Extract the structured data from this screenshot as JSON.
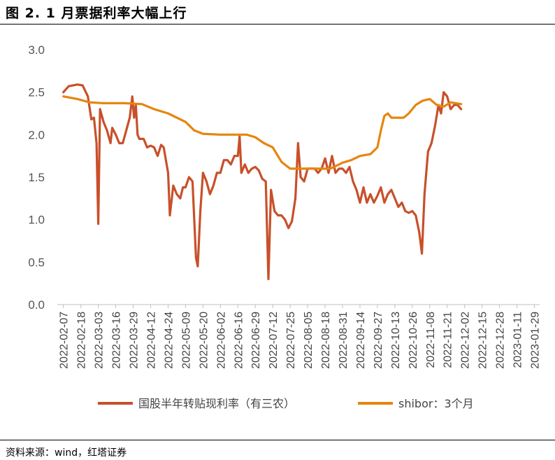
{
  "header": {
    "title": "图 2. 1 月票据利率大幅上行"
  },
  "footer": {
    "source": "资料来源：wind，红塔证券"
  },
  "chart_data": {
    "type": "line",
    "ylim": [
      0,
      3
    ],
    "yticks": [
      "0.0",
      "0.5",
      "1.0",
      "1.5",
      "2.0",
      "2.5",
      "3.0"
    ],
    "x_tick_labels": [
      "2022-02-07",
      "2022-02-18",
      "2022-03-03",
      "2022-03-16",
      "2022-03-29",
      "2022-04-12",
      "2022-04-24",
      "2022-05-09",
      "2022-05-20",
      "2022-06-02",
      "2022-06-16",
      "2022-06-29",
      "2022-07-12",
      "2022-07-25",
      "2022-08-05",
      "2022-08-18",
      "2022-08-31",
      "2022-09-14",
      "2022-09-27",
      "2022-10-13",
      "2022-10-26",
      "2022-11-08",
      "2022-11-21",
      "2022-12-02",
      "2022-12-15",
      "2022-12-28",
      "2023-01-11",
      "2023-01-29"
    ],
    "series": [
      {
        "name": "国股半年转贴现利率（有三农）",
        "color": "#C8502A",
        "points": [
          [
            0,
            2.5
          ],
          [
            0.3,
            2.57
          ],
          [
            0.8,
            2.59
          ],
          [
            1.1,
            2.58
          ],
          [
            1.4,
            2.45
          ],
          [
            1.6,
            2.18
          ],
          [
            1.75,
            2.2
          ],
          [
            1.9,
            1.9
          ],
          [
            2.0,
            0.95
          ],
          [
            2.1,
            2.3
          ],
          [
            2.3,
            2.15
          ],
          [
            2.5,
            2.05
          ],
          [
            2.7,
            1.9
          ],
          [
            2.8,
            2.08
          ],
          [
            3.0,
            2.0
          ],
          [
            3.2,
            1.9
          ],
          [
            3.4,
            1.9
          ],
          [
            3.6,
            2.05
          ],
          [
            3.8,
            2.2
          ],
          [
            3.95,
            2.45
          ],
          [
            4.05,
            2.2
          ],
          [
            4.15,
            2.35
          ],
          [
            4.25,
            2.0
          ],
          [
            4.35,
            1.95
          ],
          [
            4.6,
            1.95
          ],
          [
            4.8,
            1.85
          ],
          [
            5.0,
            1.87
          ],
          [
            5.2,
            1.85
          ],
          [
            5.4,
            1.75
          ],
          [
            5.6,
            1.88
          ],
          [
            5.75,
            1.85
          ],
          [
            6.0,
            1.55
          ],
          [
            6.1,
            1.05
          ],
          [
            6.3,
            1.4
          ],
          [
            6.5,
            1.3
          ],
          [
            6.7,
            1.25
          ],
          [
            6.85,
            1.38
          ],
          [
            7.0,
            1.38
          ],
          [
            7.2,
            1.5
          ],
          [
            7.4,
            1.45
          ],
          [
            7.6,
            0.55
          ],
          [
            7.7,
            0.45
          ],
          [
            7.85,
            1.1
          ],
          [
            8.0,
            1.55
          ],
          [
            8.2,
            1.45
          ],
          [
            8.4,
            1.3
          ],
          [
            8.6,
            1.4
          ],
          [
            8.8,
            1.55
          ],
          [
            9.0,
            1.55
          ],
          [
            9.2,
            1.7
          ],
          [
            9.4,
            1.7
          ],
          [
            9.6,
            1.65
          ],
          [
            9.8,
            1.75
          ],
          [
            10.0,
            1.75
          ],
          [
            10.1,
            1.98
          ],
          [
            10.2,
            1.55
          ],
          [
            10.4,
            1.65
          ],
          [
            10.6,
            1.55
          ],
          [
            10.8,
            1.6
          ],
          [
            11.0,
            1.62
          ],
          [
            11.2,
            1.58
          ],
          [
            11.4,
            1.48
          ],
          [
            11.6,
            1.45
          ],
          [
            11.75,
            0.3
          ],
          [
            11.9,
            1.35
          ],
          [
            12.1,
            1.1
          ],
          [
            12.3,
            1.05
          ],
          [
            12.5,
            1.05
          ],
          [
            12.7,
            1.0
          ],
          [
            12.9,
            0.9
          ],
          [
            13.1,
            0.98
          ],
          [
            13.3,
            1.25
          ],
          [
            13.45,
            1.9
          ],
          [
            13.6,
            1.5
          ],
          [
            13.8,
            1.45
          ],
          [
            14.0,
            1.6
          ],
          [
            14.2,
            1.6
          ],
          [
            14.4,
            1.6
          ],
          [
            14.6,
            1.55
          ],
          [
            14.8,
            1.6
          ],
          [
            15.0,
            1.72
          ],
          [
            15.2,
            1.55
          ],
          [
            15.4,
            1.75
          ],
          [
            15.6,
            1.55
          ],
          [
            15.8,
            1.6
          ],
          [
            16.0,
            1.6
          ],
          [
            16.2,
            1.55
          ],
          [
            16.4,
            1.62
          ],
          [
            16.6,
            1.45
          ],
          [
            16.8,
            1.35
          ],
          [
            17.0,
            1.2
          ],
          [
            17.2,
            1.38
          ],
          [
            17.4,
            1.2
          ],
          [
            17.6,
            1.3
          ],
          [
            17.8,
            1.2
          ],
          [
            18.0,
            1.28
          ],
          [
            18.2,
            1.38
          ],
          [
            18.4,
            1.2
          ],
          [
            18.6,
            1.3
          ],
          [
            18.8,
            1.35
          ],
          [
            19.0,
            1.25
          ],
          [
            19.2,
            1.15
          ],
          [
            19.4,
            1.2
          ],
          [
            19.6,
            1.1
          ],
          [
            19.8,
            1.08
          ],
          [
            20.0,
            1.1
          ],
          [
            20.2,
            1.05
          ],
          [
            20.4,
            0.85
          ],
          [
            20.55,
            0.6
          ],
          [
            20.7,
            1.3
          ],
          [
            20.9,
            1.8
          ],
          [
            21.1,
            1.9
          ],
          [
            21.3,
            2.1
          ],
          [
            21.5,
            2.35
          ],
          [
            21.65,
            2.25
          ],
          [
            21.8,
            2.5
          ],
          [
            22.0,
            2.45
          ],
          [
            22.2,
            2.3
          ],
          [
            22.4,
            2.35
          ],
          [
            22.6,
            2.35
          ],
          [
            22.8,
            2.3
          ]
        ]
      },
      {
        "name": "shibor：3个月",
        "color": "#E5860F",
        "points": [
          [
            0,
            2.45
          ],
          [
            0.8,
            2.42
          ],
          [
            1.5,
            2.38
          ],
          [
            2.3,
            2.37
          ],
          [
            3.5,
            2.37
          ],
          [
            4.5,
            2.36
          ],
          [
            5.2,
            2.3
          ],
          [
            6.0,
            2.25
          ],
          [
            7.0,
            2.15
          ],
          [
            7.5,
            2.05
          ],
          [
            8.0,
            2.01
          ],
          [
            9.0,
            2.0
          ],
          [
            10.5,
            2.0
          ],
          [
            11.0,
            1.97
          ],
          [
            11.5,
            1.9
          ],
          [
            12.0,
            1.85
          ],
          [
            12.5,
            1.68
          ],
          [
            13.0,
            1.6
          ],
          [
            13.6,
            1.6
          ],
          [
            14.5,
            1.6
          ],
          [
            15.3,
            1.6
          ],
          [
            16.0,
            1.67
          ],
          [
            16.5,
            1.7
          ],
          [
            17.0,
            1.75
          ],
          [
            17.6,
            1.77
          ],
          [
            18.0,
            1.85
          ],
          [
            18.2,
            2.05
          ],
          [
            18.4,
            2.22
          ],
          [
            18.6,
            2.25
          ],
          [
            18.8,
            2.2
          ],
          [
            19.5,
            2.2
          ],
          [
            19.8,
            2.25
          ],
          [
            20.2,
            2.35
          ],
          [
            20.6,
            2.4
          ],
          [
            21.0,
            2.42
          ],
          [
            21.4,
            2.35
          ],
          [
            21.8,
            2.33
          ],
          [
            22.2,
            2.38
          ],
          [
            22.8,
            2.36
          ]
        ]
      }
    ],
    "legend_position": "bottom",
    "grid": false
  }
}
